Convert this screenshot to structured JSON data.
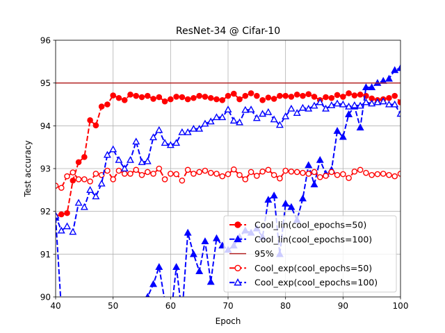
{
  "chart_data": {
    "type": "line",
    "title": "ResNet-34 @ Cifar-10",
    "xlabel": "Epoch",
    "ylabel": "Test accuracy",
    "xlim": [
      40,
      100
    ],
    "ylim": [
      90,
      96
    ],
    "xticks": [
      40,
      50,
      60,
      70,
      80,
      90,
      100
    ],
    "yticks": [
      90,
      91,
      92,
      93,
      94,
      95,
      96
    ],
    "grid": true,
    "legend_position": "lower-right",
    "x": [
      40,
      41,
      42,
      43,
      44,
      45,
      46,
      47,
      48,
      49,
      50,
      51,
      52,
      53,
      54,
      55,
      56,
      57,
      58,
      59,
      60,
      61,
      62,
      63,
      64,
      65,
      66,
      67,
      68,
      69,
      70,
      71,
      72,
      73,
      74,
      75,
      76,
      77,
      78,
      79,
      80,
      81,
      82,
      83,
      84,
      85,
      86,
      87,
      88,
      89,
      90,
      91,
      92,
      93,
      94,
      95,
      96,
      97,
      98,
      99,
      100
    ],
    "series": [
      {
        "name": "Cool_lin(cool_epochs=50)",
        "color": "#ff0000",
        "line_style": "dashed",
        "marker": "circle",
        "marker_fill": "filled",
        "values": [
          91.88,
          91.93,
          91.96,
          92.72,
          93.15,
          93.27,
          94.13,
          94.01,
          94.45,
          94.5,
          94.71,
          94.65,
          94.6,
          94.73,
          94.7,
          94.67,
          94.7,
          94.63,
          94.67,
          94.57,
          94.62,
          94.68,
          94.67,
          94.62,
          94.65,
          94.7,
          94.68,
          94.65,
          94.62,
          94.6,
          94.7,
          94.75,
          94.62,
          94.7,
          94.76,
          94.7,
          94.6,
          94.66,
          94.63,
          94.7,
          94.7,
          94.68,
          94.73,
          94.7,
          94.74,
          94.68,
          94.6,
          94.67,
          94.65,
          94.72,
          94.68,
          94.76,
          94.71,
          94.73,
          94.7,
          94.64,
          94.6,
          94.62,
          94.65,
          94.7,
          94.55
        ]
      },
      {
        "name": "Cool_lin(cool_epochs=100)",
        "color": "#0000ff",
        "line_style": "dashed",
        "marker": "triangle",
        "marker_fill": "filled",
        "values": [
          91.85,
          89.7,
          89.6,
          89.5,
          89.4,
          89.4,
          89.5,
          89.6,
          89.7,
          89.8,
          89.6,
          89.5,
          89.5,
          89.6,
          89.7,
          89.8,
          90.0,
          90.3,
          90.7,
          89.9,
          89.5,
          90.7,
          89.6,
          91.5,
          91.0,
          90.6,
          91.3,
          90.35,
          91.37,
          91.2,
          91.1,
          91.2,
          91.4,
          91.55,
          91.5,
          91.6,
          91.4,
          92.27,
          92.37,
          91.0,
          92.18,
          92.1,
          91.8,
          92.3,
          93.08,
          92.63,
          93.2,
          92.88,
          92.97,
          93.88,
          93.74,
          94.27,
          94.45,
          93.96,
          94.9,
          94.9,
          95.0,
          95.05,
          95.1,
          95.3,
          95.35
        ]
      },
      {
        "name": "95%",
        "color": "#b22222",
        "line_style": "solid",
        "marker": "none",
        "constant": 95
      },
      {
        "name": "Cool_exp(cool_epochs=50)",
        "color": "#ff0000",
        "line_style": "dashed",
        "marker": "circle",
        "marker_fill": "open",
        "values": [
          92.6,
          92.55,
          92.82,
          92.91,
          92.75,
          92.75,
          92.7,
          92.88,
          92.85,
          92.95,
          92.75,
          92.95,
          92.88,
          92.88,
          92.97,
          92.85,
          92.92,
          92.88,
          93.0,
          92.75,
          92.88,
          92.87,
          92.72,
          92.97,
          92.88,
          92.92,
          92.95,
          92.9,
          92.88,
          92.82,
          92.87,
          92.98,
          92.85,
          92.75,
          92.92,
          92.83,
          92.93,
          92.97,
          92.85,
          92.77,
          92.95,
          92.93,
          92.92,
          92.9,
          92.88,
          92.92,
          92.8,
          92.83,
          92.92,
          92.85,
          92.87,
          92.78,
          92.93,
          92.97,
          92.9,
          92.85,
          92.87,
          92.88,
          92.85,
          92.82,
          92.88
        ]
      },
      {
        "name": "Cool_exp(cool_epochs=100)",
        "color": "#0000ff",
        "line_style": "dashed",
        "marker": "triangle",
        "marker_fill": "open",
        "values": [
          91.9,
          91.55,
          91.65,
          91.52,
          92.2,
          92.1,
          92.5,
          92.35,
          92.65,
          93.32,
          93.45,
          93.2,
          93.0,
          93.2,
          93.63,
          93.15,
          93.17,
          93.73,
          93.9,
          93.6,
          93.55,
          93.6,
          93.85,
          93.85,
          93.93,
          93.93,
          94.05,
          94.1,
          94.2,
          94.2,
          94.38,
          94.12,
          94.08,
          94.37,
          94.38,
          94.18,
          94.28,
          94.32,
          94.15,
          94.02,
          94.22,
          94.4,
          94.3,
          94.42,
          94.4,
          94.47,
          94.55,
          94.4,
          94.48,
          94.52,
          94.5,
          94.45,
          94.48,
          94.47,
          94.55,
          94.52,
          94.55,
          94.57,
          94.5,
          94.5,
          94.28
        ]
      }
    ]
  }
}
